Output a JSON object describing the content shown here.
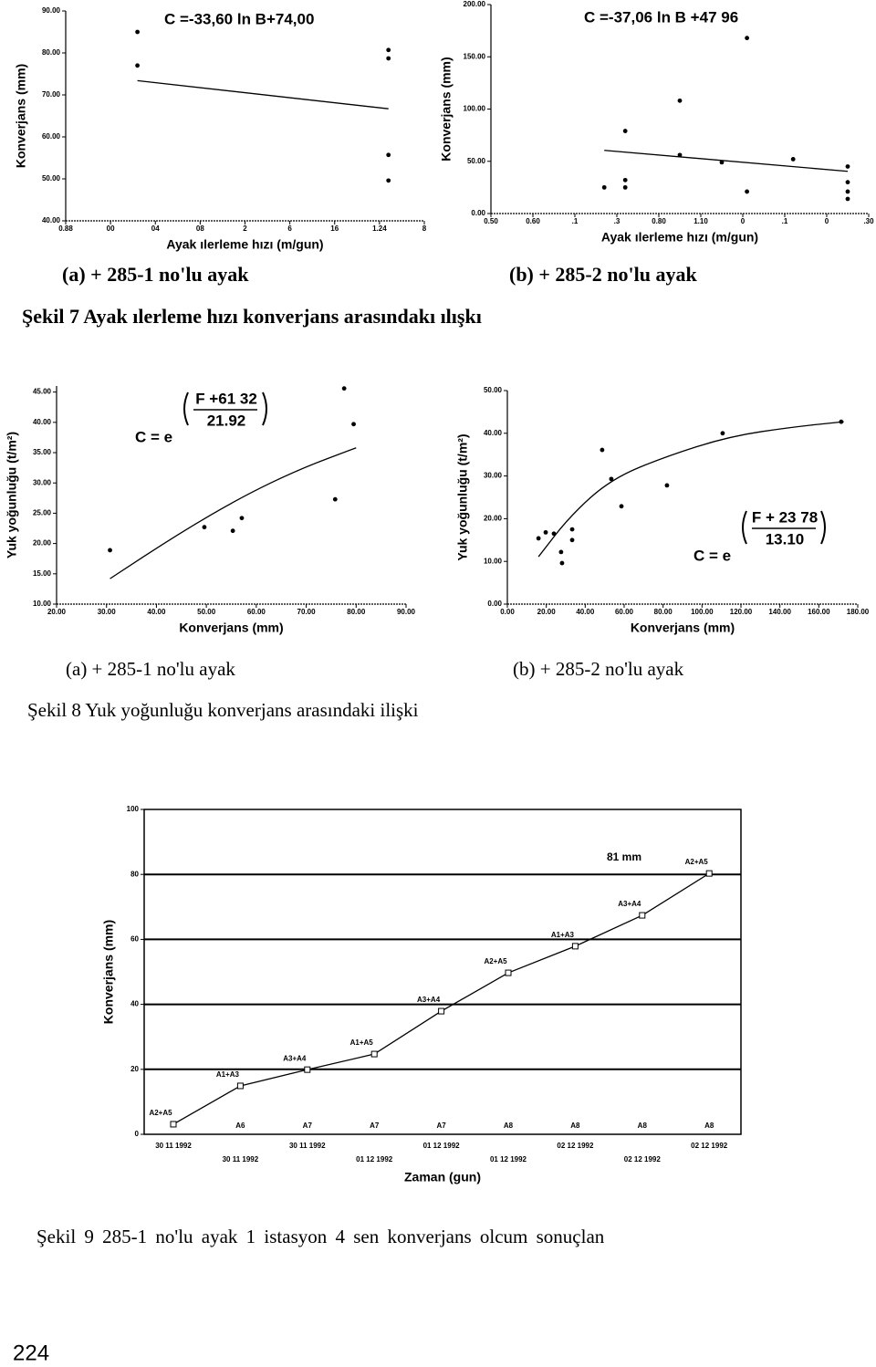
{
  "chart_data": [
    {
      "type": "scatter",
      "equation": "C =-33,60 ln B+74,00",
      "y_label": "Konverjans (mm)",
      "x_label": "Ayak ılerleme hızı (m/gun)",
      "xlim": [
        0,
        8
      ],
      "xticks": [
        {
          "value": 0,
          "label": "0.88"
        },
        {
          "value": 1,
          "label": "00"
        },
        {
          "value": 2,
          "label": "04"
        },
        {
          "value": 3,
          "label": "08"
        },
        {
          "value": 4,
          "label": "2"
        },
        {
          "value": 5,
          "label": "6"
        },
        {
          "value": 6,
          "label": "16"
        },
        {
          "value": 7,
          "label": "1.24"
        },
        {
          "value": 8,
          "label": "8"
        }
      ],
      "ylim": [
        40,
        90
      ],
      "yticks": [
        {
          "value": 40,
          "label": "40.00"
        },
        {
          "value": 50,
          "label": "50.00"
        },
        {
          "value": 60,
          "label": "60.00"
        },
        {
          "value": 70,
          "label": "70.00"
        },
        {
          "value": 80,
          "label": "80.00"
        },
        {
          "value": 90,
          "label": "90.00"
        }
      ],
      "color": "#000000",
      "series": [
        {
          "style": "points",
          "x": [
            1.6,
            1.6,
            7.2,
            7.2,
            7.2,
            7.2
          ],
          "values": [
            85,
            77,
            80.7,
            78.7,
            55.7,
            49.6
          ]
        },
        {
          "style": "line",
          "x": [
            1.6,
            7.2
          ],
          "values": [
            73.4,
            66.7
          ]
        }
      ]
    },
    {
      "type": "scatter",
      "equation": "C =-37,06 ln B +47 96",
      "y_label": "Konverjans (mm)",
      "x_label": "Ayak ılerleme hızı (m/gun)",
      "xlim": [
        0,
        9
      ],
      "xticks": [
        {
          "value": 0,
          "label": "0.50"
        },
        {
          "value": 1,
          "label": "0.60"
        },
        {
          "value": 2,
          "label": ".1"
        },
        {
          "value": 3,
          "label": ".3"
        },
        {
          "value": 4,
          "label": "0.80"
        },
        {
          "value": 5,
          "label": "1.10"
        },
        {
          "value": 6,
          "label": "0"
        },
        {
          "value": 7,
          "label": ".1"
        },
        {
          "value": 8,
          "label": "0"
        },
        {
          "value": 9,
          "label": ".30"
        }
      ],
      "ylim": [
        0,
        200
      ],
      "yticks": [
        {
          "value": 0,
          "label": "0.00"
        },
        {
          "value": 50,
          "label": "50.00"
        },
        {
          "value": 100,
          "label": "100.00"
        },
        {
          "value": 150,
          "label": "150.00"
        },
        {
          "value": 200,
          "label": "200.00"
        }
      ],
      "color": "#000000",
      "series": [
        {
          "style": "points",
          "x": [
            2.7,
            3.2,
            3.2,
            3.2,
            4.5,
            4.5,
            5.5,
            6.1,
            6.1,
            7.2,
            8.5,
            8.5,
            8.5,
            8.5
          ],
          "values": [
            25,
            79,
            32,
            25,
            108,
            56,
            49,
            168,
            21,
            52,
            45,
            30,
            21,
            14
          ]
        },
        {
          "style": "line",
          "x": [
            2.7,
            8.5
          ],
          "values": [
            60.5,
            40.4
          ]
        }
      ]
    },
    {
      "type": "scatter",
      "equation": {
        "base": "C = e",
        "numerator": "F +61 32",
        "denominator": "21.92"
      },
      "y_label": "Yuk yoğunluğu (t/m²)",
      "x_label": "Konverjans (mm)",
      "xlim": [
        20,
        90
      ],
      "xticks": [
        {
          "value": 20,
          "label": "20.00"
        },
        {
          "value": 30,
          "label": "30.00"
        },
        {
          "value": 40,
          "label": "40.00"
        },
        {
          "value": 50,
          "label": "50.00"
        },
        {
          "value": 60,
          "label": "60.00"
        },
        {
          "value": 70,
          "label": "70.00"
        },
        {
          "value": 80,
          "label": "80.00"
        },
        {
          "value": 90,
          "label": "90.00"
        }
      ],
      "ylim": [
        10,
        46
      ],
      "yticks": [
        {
          "value": 10,
          "label": "10.00"
        },
        {
          "value": 15,
          "label": "15.00"
        },
        {
          "value": 20,
          "label": "20.00"
        },
        {
          "value": 25,
          "label": "25.00"
        },
        {
          "value": 30,
          "label": "30.00"
        },
        {
          "value": 35,
          "label": "35.00"
        },
        {
          "value": 40,
          "label": "40.00"
        },
        {
          "value": 45,
          "label": "45.00"
        }
      ],
      "color": "#000000",
      "series": [
        {
          "style": "points",
          "x": [
            30.7,
            49.6,
            55.3,
            57.1,
            75.8,
            77.6,
            79.5
          ],
          "values": [
            18.9,
            22.7,
            22.1,
            24.2,
            27.3,
            45.6,
            39.7
          ]
        },
        {
          "style": "line",
          "x": [
            30.7,
            44.6,
            57.1,
            68.7,
            80
          ],
          "values": [
            14.2,
            21.7,
            27.7,
            32.3,
            35.8
          ]
        }
      ]
    },
    {
      "type": "scatter",
      "equation": {
        "base": "C = e",
        "numerator": "F + 23 78",
        "denominator": "13.10"
      },
      "y_label": "Yuk yoğunluğu (t/m²)",
      "x_label": "Konverjans (mm)",
      "xlim": [
        0,
        180
      ],
      "xticks": [
        {
          "value": 0,
          "label": "0.00"
        },
        {
          "value": 20,
          "label": "20.00"
        },
        {
          "value": 40,
          "label": "40.00"
        },
        {
          "value": 60,
          "label": "60.00"
        },
        {
          "value": 80,
          "label": "80.00"
        },
        {
          "value": 100,
          "label": "100.00"
        },
        {
          "value": 120,
          "label": "120.00"
        },
        {
          "value": 140,
          "label": "140.00"
        },
        {
          "value": 160,
          "label": "160.00"
        },
        {
          "value": 180,
          "label": "180.00"
        }
      ],
      "ylim": [
        0,
        50
      ],
      "yticks": [
        {
          "value": 0,
          "label": "0.00"
        },
        {
          "value": 10,
          "label": "10.00"
        },
        {
          "value": 20,
          "label": "20.00"
        },
        {
          "value": 30,
          "label": "30.00"
        },
        {
          "value": 40,
          "label": "40.00"
        },
        {
          "value": 50,
          "label": "50.00"
        }
      ],
      "color": "#000000",
      "series": [
        {
          "style": "points",
          "x": [
            16,
            19.7,
            23.9,
            27.6,
            28.1,
            33.3,
            33.3,
            48.7,
            53.4,
            58.6,
            82,
            110.6,
            171.5
          ],
          "values": [
            15.4,
            16.8,
            16.5,
            12.2,
            9.6,
            17.5,
            15.0,
            36.1,
            29.3,
            22.9,
            27.8,
            40.0,
            42.7
          ]
        },
        {
          "style": "line",
          "x": [
            16,
            32.3,
            53.4,
            81.5,
            114.3,
            147,
            172.8
          ],
          "values": [
            11.1,
            20.7,
            29.3,
            34.6,
            39.3,
            41.5,
            42.7
          ]
        }
      ]
    },
    {
      "type": "line",
      "annotation": "81 mm",
      "y_label": "Konverjans (mm)",
      "x_label": "Zaman (gun)",
      "categories": [
        "30 11 1992",
        "30 11 1992",
        "30 11 1992",
        "01 12 1992",
        "01 12 1992",
        "01 12 1992",
        "02 12 1992",
        "02 12 1992",
        "02 12 1992"
      ],
      "values": [
        3.1,
        14.9,
        19.9,
        24.7,
        37.9,
        49.7,
        57.9,
        67.4,
        80.3
      ],
      "point_labels": [
        "A2+A5",
        "A1+A3",
        "A3+A4",
        "A1+A5",
        "A3+A4",
        "A2+A5",
        "A1+A3",
        "A3+A4",
        "A2+A5"
      ],
      "station_labels": [
        null,
        "A6",
        "A7",
        "A7",
        "A7",
        "A8",
        "A8",
        "A8",
        "A8"
      ],
      "ylim": [
        0,
        100
      ],
      "yticks": [
        0,
        20,
        40,
        60,
        80,
        100
      ],
      "grid": true,
      "color": "#000000"
    }
  ],
  "figures": [
    {
      "subcaptions": [
        "(a) + 285-1 no'lu ayak",
        "(b) + 285-2 no'lu ayak"
      ],
      "caption": "Şekil 7 Ayak ılerleme hızı konverjans arasındakı ılışkı"
    },
    {
      "subcaptions": [
        "(a) + 285-1 no'lu ayak",
        "(b) + 285-2 no'lu ayak"
      ],
      "caption": "Şekil 8 Yuk yoğunluğu konverjans arasındaki ilişki"
    },
    {
      "caption": "Şekil 9 285-1 no'lu ayak 1 istasyon 4 sen konverjans olcum sonuçlan"
    }
  ],
  "page_number": "224"
}
